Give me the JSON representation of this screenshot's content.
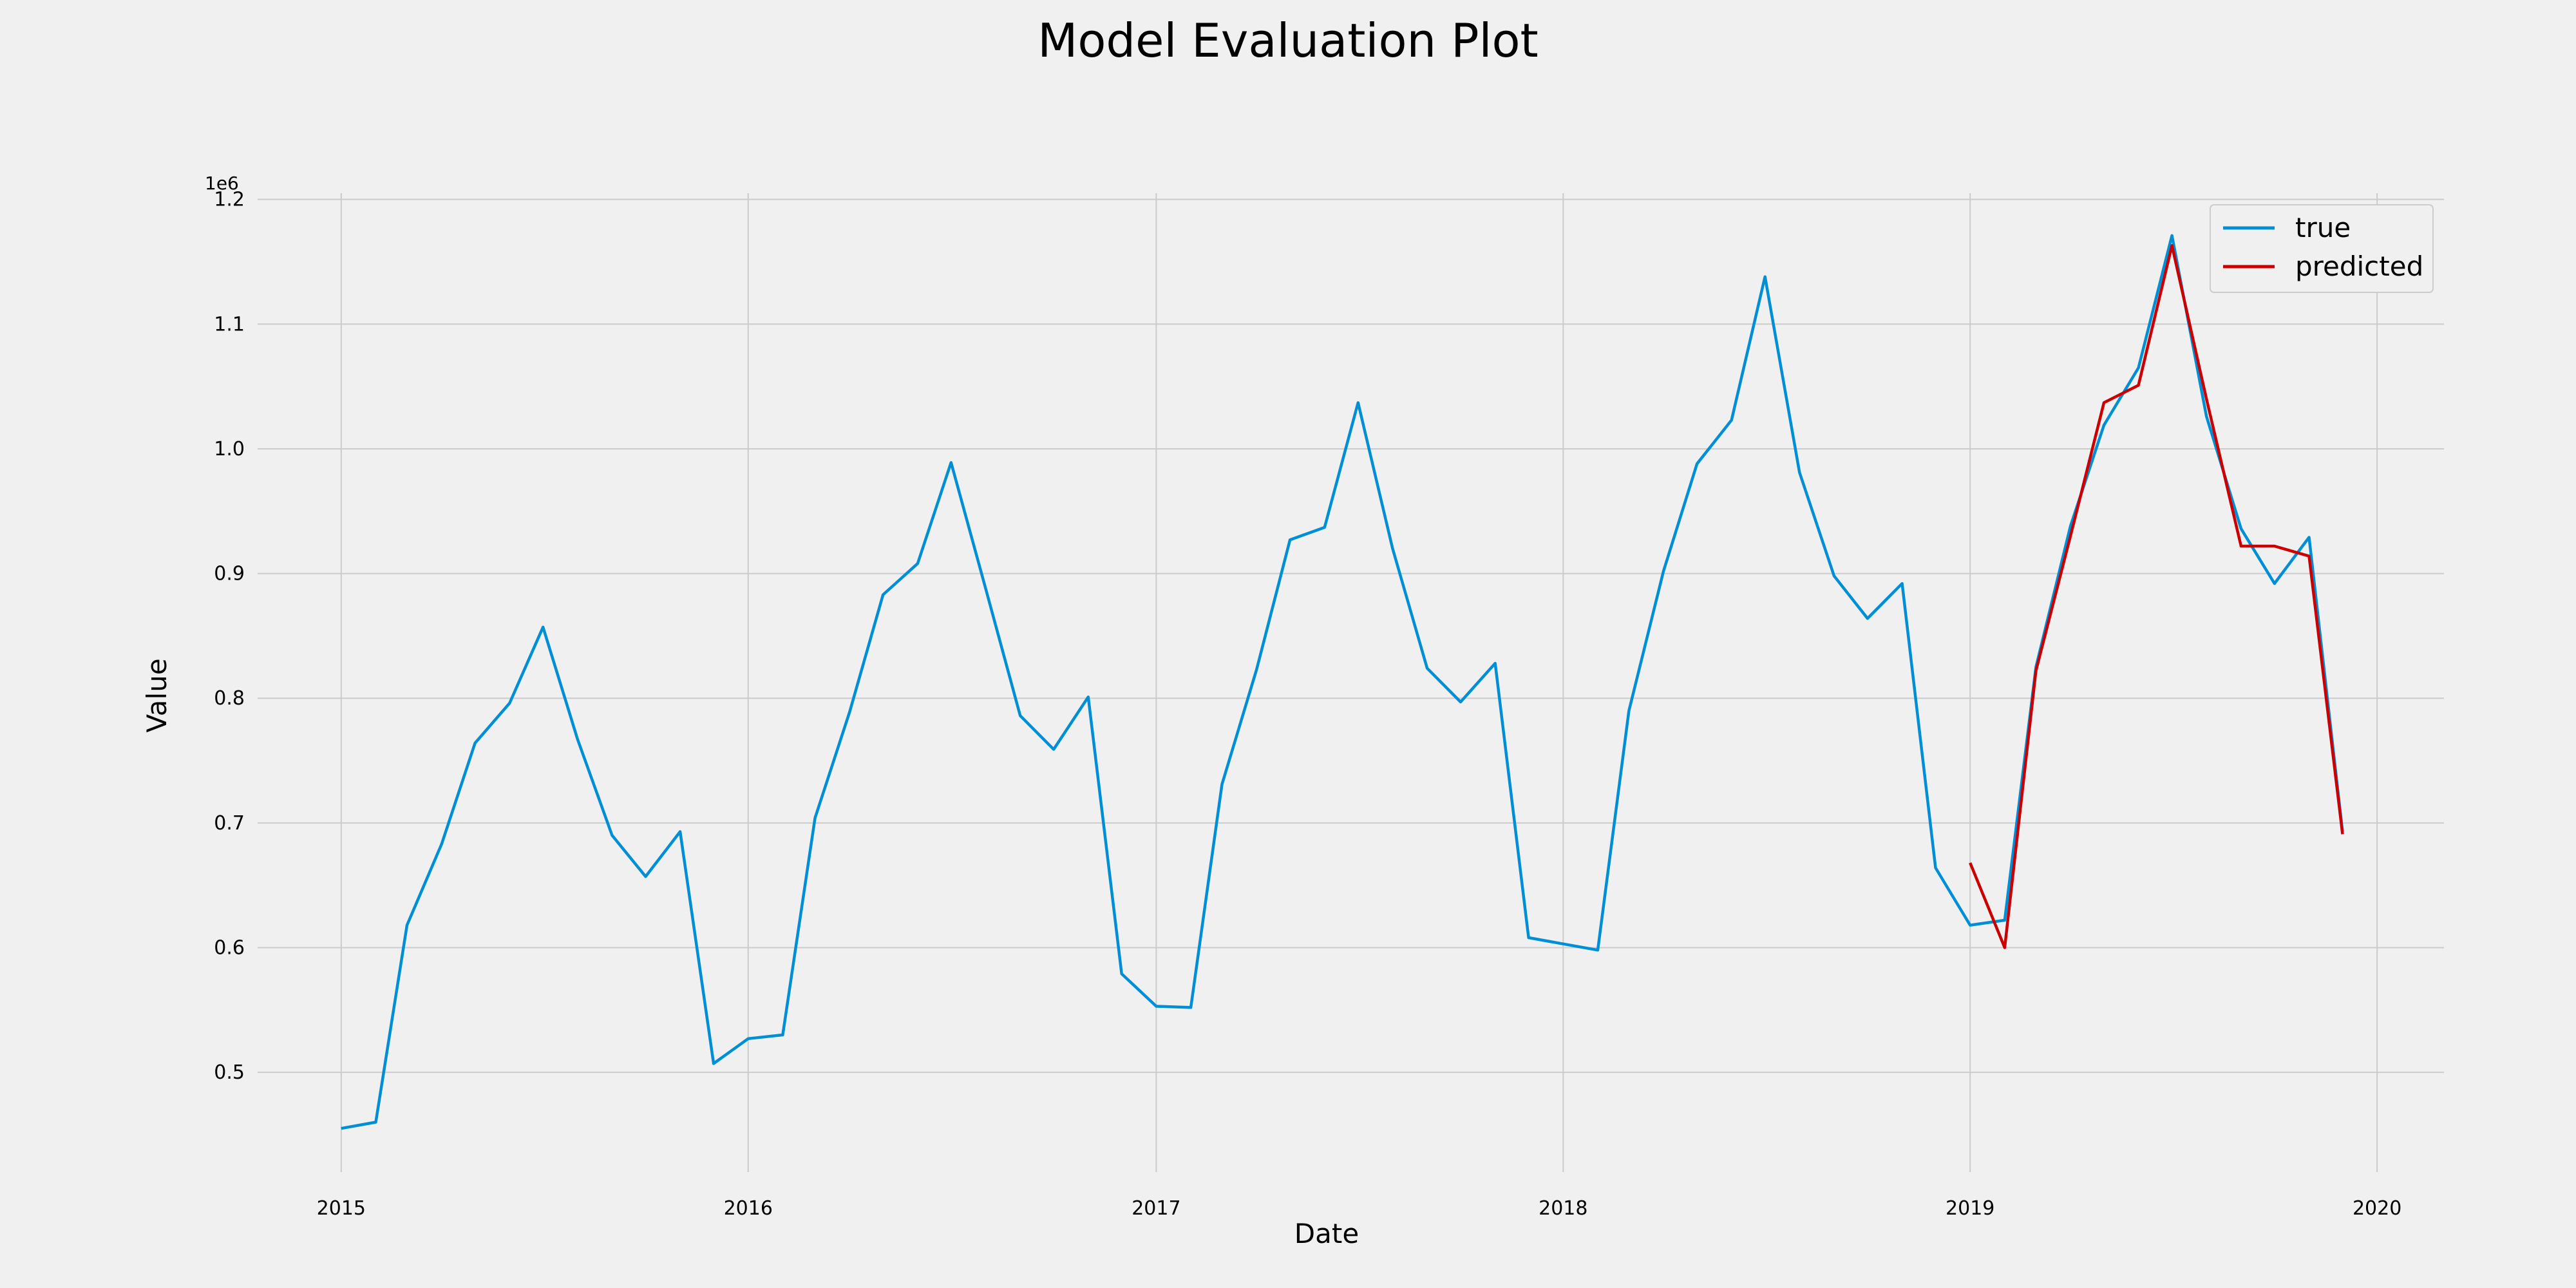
{
  "chart_data": {
    "type": "line",
    "title": "Model Evaluation Plot",
    "xlabel": "Date",
    "ylabel": "Value",
    "y_offset_label": "1e6",
    "xlim": [
      "2014-10-18",
      "2020-03-01"
    ],
    "ylim": [
      420000,
      1205000
    ],
    "x_ticks": [
      "2015-01-01",
      "2016-01-01",
      "2017-01-01",
      "2018-01-01",
      "2019-01-01",
      "2020-01-01"
    ],
    "x_tick_labels": [
      "2015",
      "2016",
      "2017",
      "2018",
      "2019",
      "2020"
    ],
    "y_ticks": [
      500000,
      600000,
      700000,
      800000,
      900000,
      1000000,
      1100000,
      1200000
    ],
    "y_tick_labels": [
      "0.5",
      "0.6",
      "0.7",
      "0.8",
      "0.9",
      "1.0",
      "1.1",
      "1.2"
    ],
    "grid": true,
    "legend_position": "top-right",
    "series": [
      {
        "name": "true",
        "color": "#008fd5",
        "x": [
          "2015-01-01",
          "2015-02-01",
          "2015-03-01",
          "2015-04-01",
          "2015-05-01",
          "2015-06-01",
          "2015-07-01",
          "2015-08-01",
          "2015-09-01",
          "2015-10-01",
          "2015-11-01",
          "2015-12-01",
          "2016-01-01",
          "2016-02-01",
          "2016-03-01",
          "2016-04-01",
          "2016-05-01",
          "2016-06-01",
          "2016-07-01",
          "2016-08-01",
          "2016-09-01",
          "2016-10-01",
          "2016-11-01",
          "2016-12-01",
          "2017-01-01",
          "2017-02-01",
          "2017-03-01",
          "2017-04-01",
          "2017-05-01",
          "2017-06-01",
          "2017-07-01",
          "2017-08-01",
          "2017-09-01",
          "2017-10-01",
          "2017-11-01",
          "2017-12-01",
          "2018-01-01",
          "2018-02-01",
          "2018-03-01",
          "2018-04-01",
          "2018-05-01",
          "2018-06-01",
          "2018-07-01",
          "2018-08-01",
          "2018-09-01",
          "2018-10-01",
          "2018-11-01",
          "2018-12-01",
          "2019-01-01",
          "2019-02-01",
          "2019-03-01",
          "2019-04-01",
          "2019-05-01",
          "2019-06-01",
          "2019-07-01",
          "2019-08-01",
          "2019-09-01",
          "2019-10-01",
          "2019-11-01",
          "2019-12-01"
        ],
        "values": [
          455000,
          460000,
          618000,
          683000,
          764000,
          796000,
          857000,
          767000,
          690000,
          657000,
          693000,
          507000,
          527000,
          530000,
          704000,
          789000,
          883000,
          908000,
          989000,
          888000,
          786000,
          759000,
          801000,
          579000,
          553000,
          552000,
          731000,
          823000,
          927000,
          937000,
          1037000,
          920000,
          824000,
          797000,
          828000,
          608000,
          603000,
          598000,
          790000,
          902000,
          988000,
          1023000,
          1138000,
          981000,
          898000,
          864000,
          892000,
          664000,
          618000,
          622000,
          825000,
          938000,
          1019000,
          1065000,
          1171000,
          1026000,
          936000,
          892000,
          929000,
          693000
        ]
      },
      {
        "name": "predicted",
        "color": "#cc0000",
        "x": [
          "2019-01-01",
          "2019-02-01",
          "2019-03-01",
          "2019-04-01",
          "2019-05-01",
          "2019-06-01",
          "2019-07-01",
          "2019-08-01",
          "2019-09-01",
          "2019-10-01",
          "2019-11-01",
          "2019-12-01"
        ],
        "values": [
          668000,
          600000,
          822000,
          930000,
          1037000,
          1051000,
          1163000,
          1040000,
          922000,
          922000,
          914000,
          691000
        ]
      }
    ]
  }
}
